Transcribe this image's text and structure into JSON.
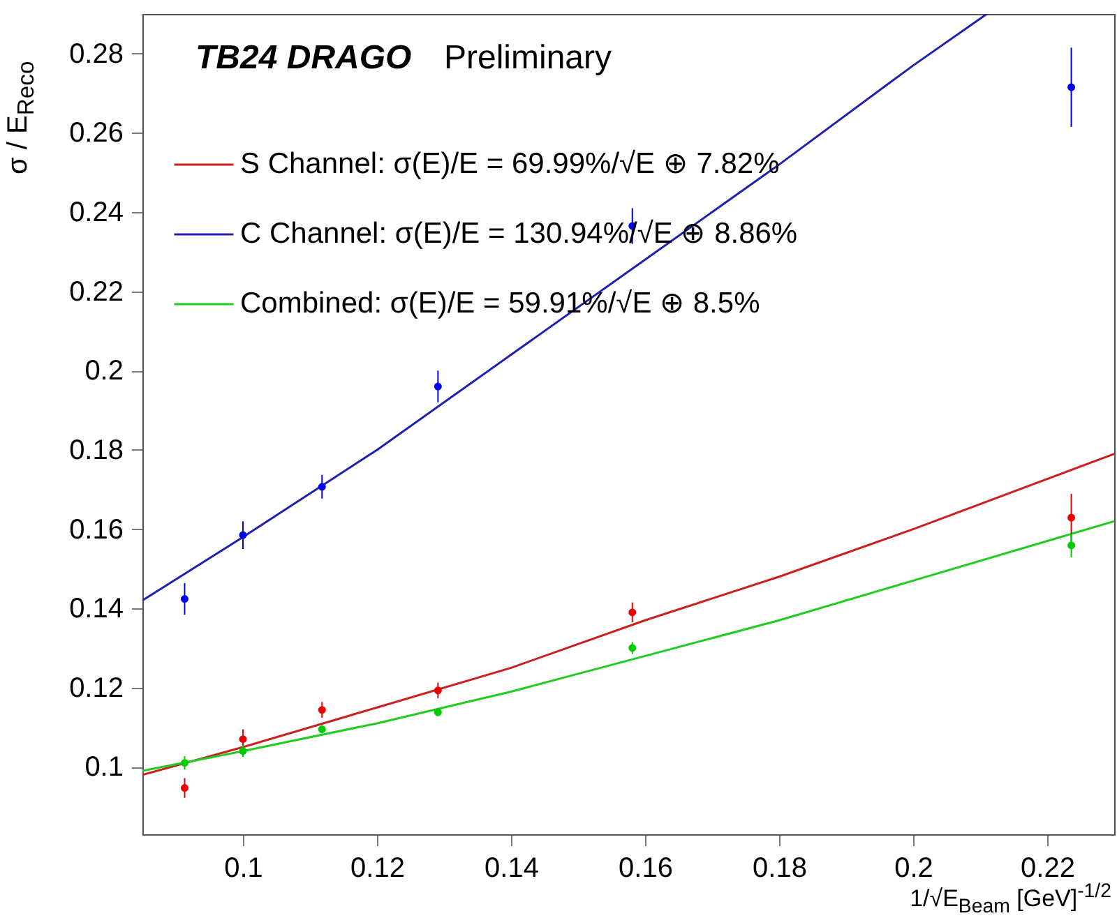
{
  "chart_data": {
    "type": "scatter",
    "title": "TB24 DRAGO",
    "subtitle": "Preliminary",
    "xlabel": "1/√E$_{Beam}$ [GeV]$^{-1/2}$",
    "ylabel": "σ / E$_{Reco}$",
    "xlim": [
      0.085,
      0.23
    ],
    "ylim": [
      0.083,
      0.29
    ],
    "xticks": [
      0.1,
      0.12,
      0.14,
      0.16,
      0.18,
      0.2,
      0.22
    ],
    "yticks": [
      0.1,
      0.12,
      0.14,
      0.16,
      0.18,
      0.2,
      0.22,
      0.24,
      0.26,
      0.28
    ],
    "grid": false,
    "legend": "top left",
    "marker": "circle",
    "series": [
      {
        "name": "S Channel: σ(E)/E = 69.99%/√E ⊕ 7.82%",
        "type": "line",
        "marker": "none",
        "color": "#cc1f1f",
        "x": [
          0.085,
          0.1,
          0.12,
          0.14,
          0.16,
          0.18,
          0.2,
          0.23
        ],
        "values": [
          0.098,
          0.105,
          0.115,
          0.125,
          0.137,
          0.148,
          0.16,
          0.179
        ]
      },
      {
        "name": "C Channel: σ(E)/E = 130.94%/√E ⊕ 8.86%",
        "type": "line",
        "marker": "none",
        "color": "#1f1fb0",
        "x": [
          0.085,
          0.1,
          0.12,
          0.14,
          0.16,
          0.18,
          0.2,
          0.211
        ],
        "values": [
          0.142,
          0.158,
          0.18,
          0.204,
          0.228,
          0.252,
          0.277,
          0.29
        ]
      },
      {
        "name": "Combined: σ(E)/E = 59.91%/√E ⊕ 8.5%",
        "type": "line",
        "marker": "none",
        "color": "#1fcc1f",
        "x": [
          0.085,
          0.1,
          0.12,
          0.14,
          0.16,
          0.18,
          0.2,
          0.23
        ],
        "values": [
          0.099,
          0.104,
          0.111,
          0.119,
          0.128,
          0.137,
          0.147,
          0.162
        ]
      },
      {
        "color": "#ee0000",
        "x": [
          0.0913,
          0.1,
          0.1118,
          0.1291,
          0.1581,
          0.2236
        ],
        "values": [
          0.0947,
          0.107,
          0.1144,
          0.1193,
          0.139,
          0.1629
        ],
        "errors": [
          0.0025,
          0.0025,
          0.002,
          0.002,
          0.0025,
          0.006
        ]
      },
      {
        "color": "#0000ee",
        "x": [
          0.0913,
          0.1,
          0.1118,
          0.1291,
          0.1581,
          0.2236
        ],
        "values": [
          0.1424,
          0.1585,
          0.1707,
          0.196,
          0.2365,
          0.2715
        ],
        "errors": [
          0.004,
          0.0035,
          0.003,
          0.004,
          0.0045,
          0.01
        ]
      },
      {
        "color": "#00cc00",
        "x": [
          0.0913,
          0.1,
          0.1118,
          0.1291,
          0.1581,
          0.2236
        ],
        "values": [
          0.101,
          0.104,
          0.1095,
          0.1138,
          0.13,
          0.1559
        ],
        "errors": [
          0.0017,
          0.0015,
          0.001,
          0.001,
          0.0015,
          0.003
        ]
      }
    ]
  }
}
